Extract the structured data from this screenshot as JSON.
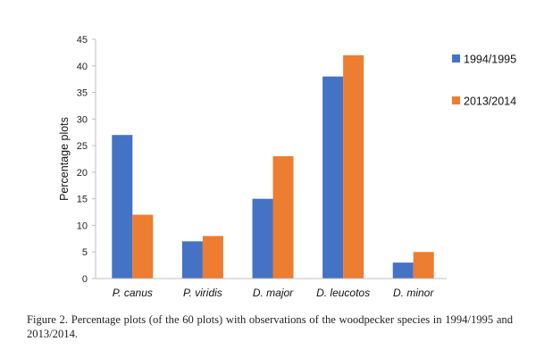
{
  "chart_data": {
    "type": "bar",
    "categories": [
      "P. canus",
      "P. viridis",
      "D. major",
      "D. leucotos",
      "D. minor"
    ],
    "series": [
      {
        "name": "1994/1995",
        "values": [
          27,
          7,
          15,
          38,
          3
        ],
        "color": "#4472c4"
      },
      {
        "name": "2013/2014",
        "values": [
          12,
          8,
          23,
          42,
          5
        ],
        "color": "#ed7d31"
      }
    ],
    "ylabel": "Percentage plots",
    "xlabel": "",
    "ylim": [
      0,
      45
    ],
    "yticks": [
      0,
      5,
      10,
      15,
      20,
      25,
      30,
      35,
      40,
      45
    ],
    "grid": false,
    "legend_position": "right"
  },
  "caption": "Figure 2. Percentage plots (of the 60 plots) with observations of the woodpecker species in 1994/1995 and 2013/2014."
}
